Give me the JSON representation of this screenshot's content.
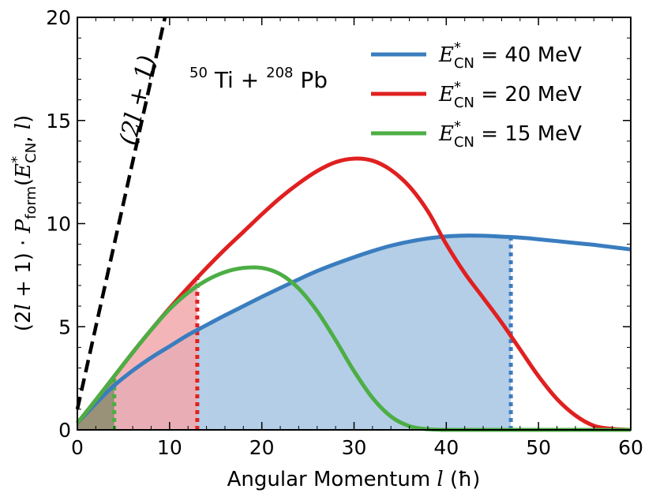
{
  "chart_data": {
    "type": "line",
    "title": "",
    "reaction": {
      "base": "Ti",
      "base_mass": "50",
      "plus": "+",
      "target": "Pb",
      "target_mass": "208"
    },
    "xlabel": "Angular Momentum l (ħ)",
    "xlabel_parts": {
      "text": "Angular Momentum ",
      "var": "l",
      "unit": " (ħ)"
    },
    "ylabel": "(2l+1) · P_form(E*_CN, l)",
    "xlim": [
      0,
      60
    ],
    "ylim": [
      0,
      20
    ],
    "xticks": [
      0,
      10,
      20,
      30,
      40,
      50,
      60
    ],
    "yticks": [
      0,
      5,
      10,
      15,
      20
    ],
    "grid": false,
    "legend_position": "top-right",
    "reference_line": {
      "name": "(2l+1)",
      "label": "(2l + 1)",
      "color": "#000000",
      "style": "dashed",
      "x": [
        0,
        10
      ],
      "y": [
        1,
        21
      ]
    },
    "series": [
      {
        "name": "E*CN = 40 MeV",
        "legend": {
          "symbol": "E",
          "sup": "*",
          "sub": "CN",
          "value": " = 40 MeV"
        },
        "color": "#3a7dbf",
        "fill_color": "#a7c5e3",
        "cutoff_l": 47,
        "x": [
          0,
          2,
          4,
          6,
          8,
          10,
          12,
          14,
          16,
          18,
          20,
          22,
          24,
          26,
          28,
          30,
          32,
          34,
          36,
          38,
          40,
          42,
          44,
          46,
          48,
          50,
          52,
          54,
          56,
          58,
          60
        ],
        "y": [
          0.33,
          1.28,
          2.15,
          2.87,
          3.5,
          4.05,
          4.6,
          5.08,
          5.55,
          6.0,
          6.45,
          6.88,
          7.3,
          7.7,
          8.05,
          8.37,
          8.67,
          8.93,
          9.13,
          9.28,
          9.38,
          9.42,
          9.41,
          9.37,
          9.32,
          9.24,
          9.15,
          9.06,
          8.97,
          8.86,
          8.75
        ]
      },
      {
        "name": "E*CN = 20 MeV",
        "legend": {
          "symbol": "E",
          "sup": "*",
          "sub": "CN",
          "value": " = 20 MeV"
        },
        "color": "#e02020",
        "fill_color": "#f2a8ab",
        "cutoff_l": 13,
        "x": [
          0,
          2,
          4,
          6,
          8,
          10,
          12,
          14,
          16,
          18,
          20,
          22,
          24,
          26,
          28,
          30,
          32,
          34,
          36,
          38,
          40,
          42,
          44,
          46,
          48,
          50,
          52,
          54,
          56,
          58,
          60
        ],
        "y": [
          0.33,
          1.45,
          2.6,
          3.75,
          4.85,
          5.9,
          6.9,
          7.85,
          8.75,
          9.6,
          10.45,
          11.25,
          11.95,
          12.55,
          12.98,
          13.15,
          13.05,
          12.6,
          11.8,
          10.6,
          9.0,
          7.6,
          6.4,
          5.2,
          3.9,
          2.6,
          1.5,
          0.7,
          0.2,
          0.05,
          0.0
        ]
      },
      {
        "name": "E*CN = 15 MeV",
        "legend": {
          "symbol": "E",
          "sup": "*",
          "sub": "CN",
          "value": " = 15 MeV"
        },
        "color": "#4cae44",
        "fill_color": "#8c8c6e",
        "cutoff_l": 4,
        "x": [
          0,
          2,
          4,
          6,
          8,
          10,
          12,
          14,
          16,
          18,
          20,
          22,
          24,
          26,
          28,
          30,
          32,
          34,
          36,
          38,
          40,
          42,
          44,
          46,
          48,
          50,
          52,
          54,
          56,
          58,
          60
        ],
        "y": [
          0.33,
          1.45,
          2.6,
          3.75,
          4.85,
          5.85,
          6.65,
          7.25,
          7.65,
          7.85,
          7.85,
          7.55,
          6.85,
          5.75,
          4.35,
          2.85,
          1.55,
          0.65,
          0.18,
          0.03,
          0.0,
          0.0,
          0.0,
          0.0,
          0.0,
          0.0,
          0.0,
          0.0,
          0.0,
          0.0,
          0.0
        ]
      }
    ]
  }
}
